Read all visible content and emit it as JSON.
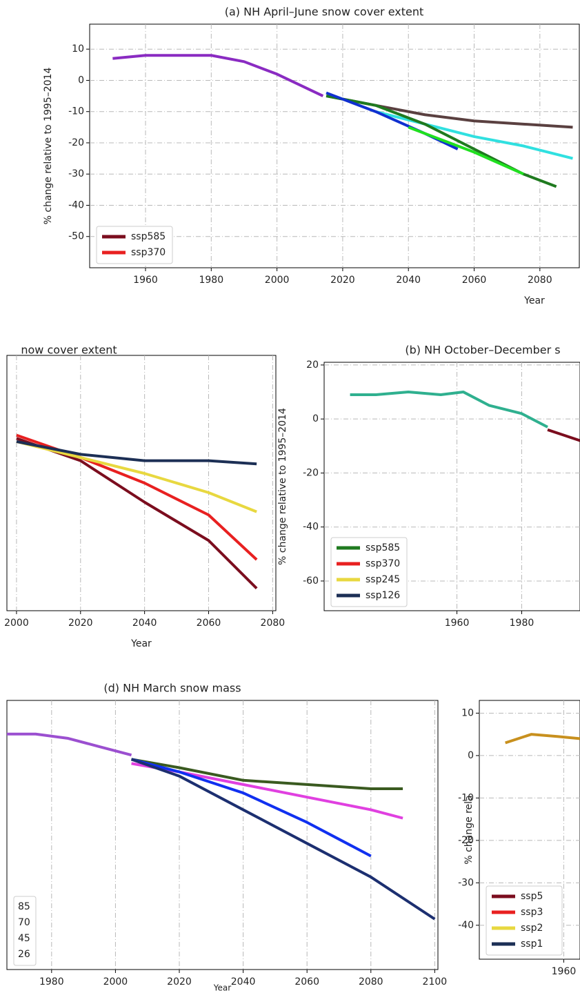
{
  "chart_data": [
    {
      "type": "line",
      "title": "(a) NH April–June snow cover extent",
      "ylabel": "% change relative to 1995–2014",
      "xlabel": "Year",
      "xlim": [
        1943,
        2092
      ],
      "ylim": [
        -60,
        18
      ],
      "xticks": [
        1960,
        1980,
        2000,
        2020,
        2040,
        2060,
        2080
      ],
      "yticks": [
        10,
        0,
        -10,
        -20,
        -30,
        -40,
        -50
      ],
      "grid": true,
      "series": [
        {
          "color": "#8a2bc2",
          "x": [
            1950,
            1960,
            1970,
            1980,
            1990,
            2000,
            2010,
            2014
          ],
          "values": [
            7,
            8,
            8,
            8,
            6,
            2,
            -3,
            -5
          ]
        },
        {
          "color": "#5a4040",
          "x": [
            2015,
            2030,
            2045,
            2060,
            2075,
            2090
          ],
          "values": [
            -5,
            -8,
            -11,
            -13,
            -14,
            -15
          ]
        },
        {
          "color": "#30e0e0",
          "x": [
            2030,
            2045,
            2060,
            2075,
            2090
          ],
          "values": [
            -10,
            -14,
            -18,
            -21,
            -25
          ]
        },
        {
          "color": "#1f7a1f",
          "x": [
            2015,
            2030,
            2045,
            2060,
            2075,
            2085
          ],
          "values": [
            -5,
            -8,
            -14,
            -22,
            -30,
            -34
          ]
        },
        {
          "color": "#1030d0",
          "x": [
            2015,
            2030,
            2045,
            2055
          ],
          "values": [
            -4,
            -10,
            -17,
            -22
          ]
        },
        {
          "color": "#20e020",
          "x": [
            2040,
            2060,
            2075
          ],
          "values": [
            -15,
            -23,
            -30
          ]
        }
      ],
      "legend": [
        {
          "label": "ssp585",
          "color": "#7b0d1e"
        },
        {
          "label": "ssp370",
          "color": "#e82020"
        }
      ],
      "legend_loc": "lower left"
    },
    {
      "type": "line",
      "title": "now cover extent",
      "xlabel": "Year",
      "xlim": [
        1997,
        2081
      ],
      "ylim": [
        -62,
        18
      ],
      "xticks": [
        2000,
        2020,
        2040,
        2060,
        2080
      ],
      "grid": true,
      "series": [
        {
          "color": "#7b0d1e",
          "x": [
            2000,
            2020,
            2040,
            2060,
            2075
          ],
          "values": [
            -8,
            -15,
            -28,
            -40,
            -55
          ]
        },
        {
          "color": "#e82020",
          "x": [
            2000,
            2020,
            2040,
            2060,
            2075
          ],
          "values": [
            -7,
            -14,
            -22,
            -32,
            -46
          ]
        },
        {
          "color": "#e8d840",
          "x": [
            2000,
            2020,
            2040,
            2060,
            2075
          ],
          "values": [
            -9,
            -14,
            -19,
            -25,
            -31
          ]
        },
        {
          "color": "#1c2f55",
          "x": [
            2000,
            2020,
            2040,
            2060,
            2075
          ],
          "values": [
            -9,
            -13,
            -15,
            -15,
            -16
          ]
        }
      ]
    },
    {
      "type": "line",
      "title": "(b) NH October–December s",
      "ylabel": "% change relative to 1995–2014",
      "xlim": [
        1919,
        1998
      ],
      "ylim": [
        -71,
        21
      ],
      "xticks": [
        1960,
        1980
      ],
      "yticks": [
        20,
        0,
        -20,
        -40,
        -60
      ],
      "grid": true,
      "series": [
        {
          "color": "#2fb08f",
          "x": [
            1927,
            1935,
            1945,
            1955,
            1962,
            1970,
            1980,
            1988
          ],
          "values": [
            9,
            9,
            10,
            9,
            10,
            5,
            2,
            -3
          ]
        },
        {
          "color": "#7b0d1e",
          "x": [
            1988,
            1993,
            1998
          ],
          "values": [
            -4,
            -6,
            -8
          ]
        }
      ],
      "legend": [
        {
          "label": "ssp585",
          "color": "#1f7a1f"
        },
        {
          "label": "ssp370",
          "color": "#e82020"
        },
        {
          "label": "ssp245",
          "color": "#e8d840"
        },
        {
          "label": "ssp126",
          "color": "#1c2f55"
        }
      ],
      "legend_loc": "lower left"
    },
    {
      "type": "line",
      "title": "(d) NH March snow mass",
      "xlabel": "Year",
      "xlim": [
        1966,
        2101
      ],
      "ylim": [
        -52,
        12
      ],
      "xticks": [
        1980,
        2000,
        2020,
        2040,
        2060,
        2080,
        2100
      ],
      "grid": true,
      "series": [
        {
          "color": "#9b4fd0",
          "x": [
            1966,
            1975,
            1985,
            1995,
            2005
          ],
          "values": [
            4,
            4,
            3,
            1,
            -1
          ]
        },
        {
          "color": "#3a5a20",
          "x": [
            2005,
            2020,
            2040,
            2060,
            2080,
            2090
          ],
          "values": [
            -2,
            -4,
            -7,
            -8,
            -9,
            -9
          ]
        },
        {
          "color": "#e040e0",
          "x": [
            2005,
            2020,
            2040,
            2060,
            2080,
            2090
          ],
          "values": [
            -3,
            -5,
            -8,
            -11,
            -14,
            -16
          ]
        },
        {
          "color": "#1030f0",
          "x": [
            2005,
            2020,
            2040,
            2060,
            2080
          ],
          "values": [
            -2,
            -5,
            -10,
            -17,
            -25
          ]
        },
        {
          "color": "#1c2f70",
          "x": [
            2005,
            2020,
            2040,
            2060,
            2080,
            2100
          ],
          "values": [
            -2,
            -6,
            -14,
            -22,
            -30,
            -40
          ]
        }
      ],
      "legend": [
        {
          "label": "85"
        },
        {
          "label": "70"
        },
        {
          "label": "45"
        },
        {
          "label": "26"
        }
      ],
      "legend_loc": "lower left"
    },
    {
      "type": "line",
      "ylabel": "% change rela",
      "xlim": [
        1934,
        1965
      ],
      "ylim": [
        -48,
        13
      ],
      "xticks": [
        1960
      ],
      "yticks": [
        10,
        0,
        -10,
        -20,
        -30,
        -40
      ],
      "grid": true,
      "series": [
        {
          "color": "#c8901e",
          "x": [
            1942,
            1950,
            1958,
            1965
          ],
          "values": [
            3,
            5,
            4.5,
            4
          ]
        }
      ],
      "legend": [
        {
          "label": "ssp5",
          "color": "#7b0d1e"
        },
        {
          "label": "ssp3",
          "color": "#e82020"
        },
        {
          "label": "ssp2",
          "color": "#e8d840"
        },
        {
          "label": "ssp1",
          "color": "#1c2f55"
        }
      ],
      "legend_loc": "lower left"
    }
  ]
}
